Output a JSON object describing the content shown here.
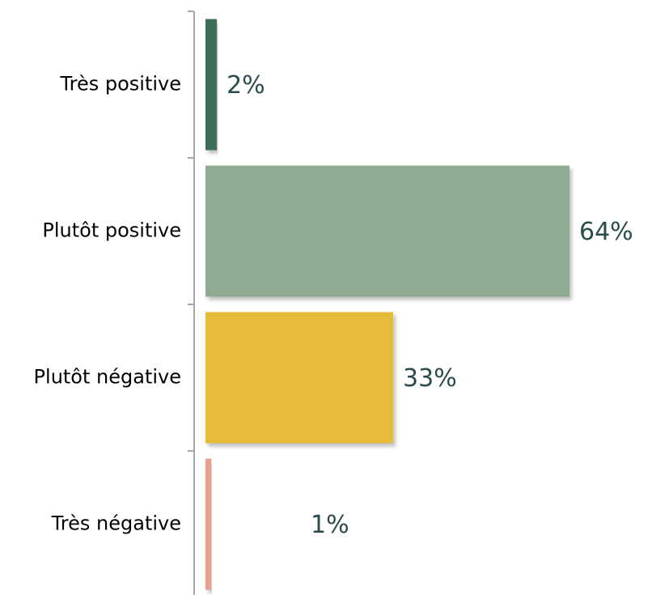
{
  "chart_data": {
    "type": "bar",
    "orientation": "horizontal",
    "categories": [
      "Très positive",
      "Plutôt positive",
      "Plutôt négative",
      "Très négative"
    ],
    "values": [
      2,
      64,
      33,
      1
    ],
    "value_labels": [
      "2%",
      "64%",
      "33%",
      "1%"
    ],
    "colors": [
      "#3e6e58",
      "#8faa90",
      "#e8bc3b",
      "#e6a08c"
    ],
    "title": "",
    "xlabel": "",
    "ylabel": "",
    "xlim": [
      0,
      64
    ],
    "grid": false,
    "legend": "none"
  }
}
